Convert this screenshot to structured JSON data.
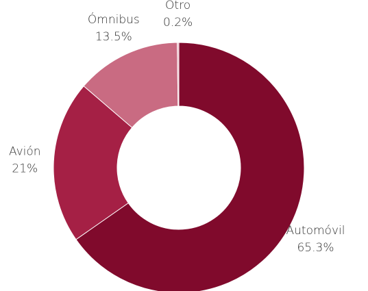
{
  "chart_data": {
    "type": "donut",
    "categories": [
      "Automóvil",
      "Avión",
      "Ómnibus",
      "Otro"
    ],
    "values": [
      65.3,
      21,
      13.5,
      0.2
    ],
    "value_labels": [
      "65.3%",
      "21%",
      "13.5%",
      "0.2%"
    ],
    "colors": [
      "#800a2c",
      "#a52045",
      "#c96b82",
      "#e8b0bd"
    ]
  }
}
